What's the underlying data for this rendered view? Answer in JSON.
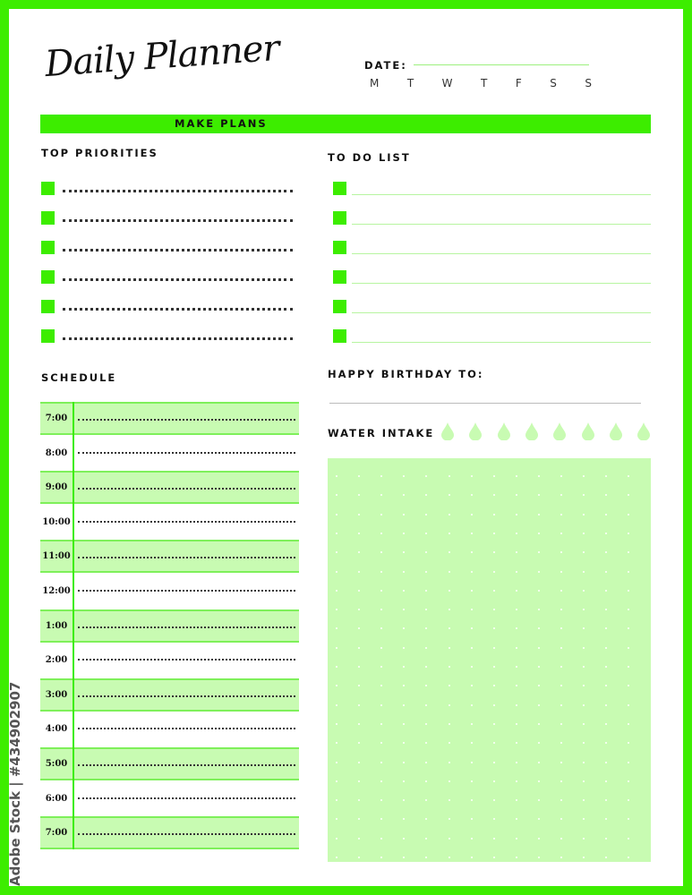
{
  "header": {
    "title": "Daily Planner",
    "date_label": "DATE:",
    "days": [
      "M",
      "T",
      "W",
      "T",
      "F",
      "S",
      "S"
    ]
  },
  "banner": {
    "label": "MAKE PLANS"
  },
  "priorities": {
    "title": "TOP PRIORITIES",
    "count": 6
  },
  "todo": {
    "title": "TO DO LIST",
    "count": 6
  },
  "schedule": {
    "title": "SCHEDULE",
    "times": [
      "7:00",
      "8:00",
      "9:00",
      "10:00",
      "11:00",
      "12:00",
      "1:00",
      "2:00",
      "3:00",
      "4:00",
      "5:00",
      "6:00",
      "7:00"
    ]
  },
  "birthday": {
    "label": "HAPPY BIRTHDAY TO:"
  },
  "water": {
    "label": "WATER INTAKE",
    "drops": 8
  },
  "colors": {
    "accent": "#3ded00",
    "light": "#c8fbb2",
    "drop": "#c8fbb2"
  },
  "watermark": "Adobe Stock | #434902907"
}
